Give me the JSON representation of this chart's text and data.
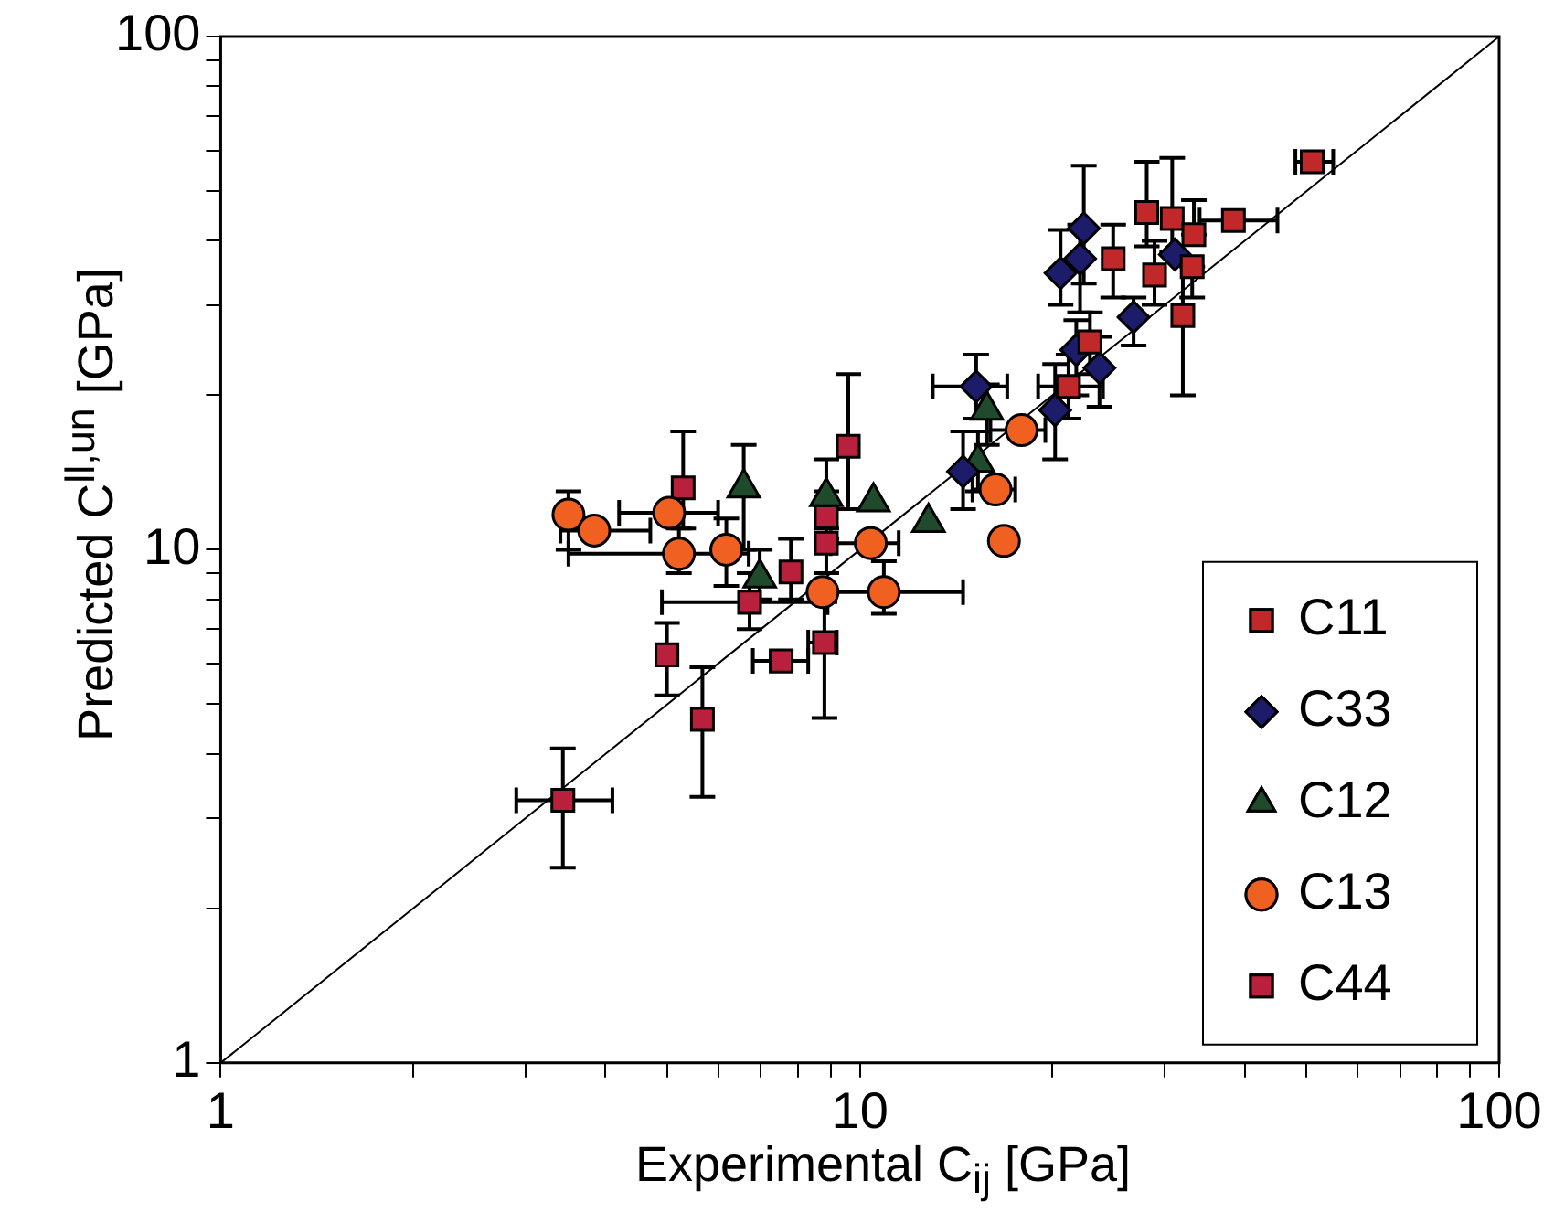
{
  "chart_data": {
    "type": "scatter",
    "xlabel": "Experimental C$_{ij}$ [GPa]",
    "ylabel": "Predicted C$^{ll,un}$ [GPa]",
    "log": "xy",
    "grid": false,
    "legend": "bottom right",
    "xlim": [
      1,
      100
    ],
    "ylim": [
      1,
      100
    ],
    "xticks": [
      1,
      {
        "value": 2,
        "label": null
      },
      {
        "value": 3,
        "label": null
      },
      {
        "value": 4,
        "label": null
      },
      {
        "value": 5,
        "label": null
      },
      {
        "value": 6,
        "label": null
      },
      {
        "value": 7,
        "label": null
      },
      {
        "value": 8,
        "label": null
      },
      {
        "value": 9,
        "label": null
      },
      10,
      {
        "value": 20,
        "label": null
      },
      {
        "value": 30,
        "label": null
      },
      {
        "value": 40,
        "label": null
      },
      {
        "value": 50,
        "label": null
      },
      {
        "value": 60,
        "label": null
      },
      {
        "value": 70,
        "label": null
      },
      {
        "value": 80,
        "label": null
      },
      {
        "value": 90,
        "label": null
      },
      100
    ],
    "yticks": [
      1,
      {
        "value": 2,
        "label": null
      },
      {
        "value": 3,
        "label": null
      },
      {
        "value": 4,
        "label": null
      },
      {
        "value": 5,
        "label": null
      },
      {
        "value": 6,
        "label": null
      },
      {
        "value": 7,
        "label": null
      },
      {
        "value": 8,
        "label": null
      },
      {
        "value": 9,
        "label": null
      },
      10,
      {
        "value": 20,
        "label": null
      },
      {
        "value": 30,
        "label": null
      },
      {
        "value": 40,
        "label": null
      },
      {
        "value": 50,
        "label": null
      },
      {
        "value": 60,
        "label": null
      },
      {
        "value": 70,
        "label": null
      },
      {
        "value": 80,
        "label": null
      },
      {
        "value": 90,
        "label": null
      },
      100
    ],
    "series": [
      {
        "type": "line",
        "color": "#000000",
        "marker": "none",
        "x": [
          1,
          100
        ],
        "values": [
          1,
          100
        ]
      },
      {
        "name": "C11",
        "color": "#c0282a",
        "marker": "square",
        "x": [
          51.0,
          28.1,
          30.8,
          33.3,
          38.4,
          24.9,
          28.9,
          33.1,
          32.0,
          21.2,
          22.9
        ],
        "values": [
          57.0,
          45.4,
          44.2,
          41.1,
          43.8,
          36.9,
          34.3,
          35.6,
          28.6,
          20.8,
          25.4
        ],
        "errors": [
          null,
          [
            39,
            57
          ],
          [
            38,
            58
          ],
          [
            41.1,
            48
          ],
          null,
          [
            31,
            43
          ],
          [
            30,
            40
          ],
          [
            31,
            35.6
          ],
          [
            20,
            36
          ],
          [
            18,
            24
          ],
          [
            22,
            29
          ]
        ],
        "xerrors": [
          [
            48,
            55
          ],
          null,
          null,
          null,
          [
            34,
            45
          ],
          null,
          null,
          null,
          null,
          [
            19,
            24
          ],
          null
        ]
      },
      {
        "name": "C33",
        "color": "#1c1c6a",
        "marker": "diamond",
        "x": [
          22.4,
          22.1,
          20.6,
          26.8,
          31.1,
          21.8,
          23.7,
          20.2,
          15.2,
          14.5
        ],
        "values": [
          42.3,
          36.9,
          34.6,
          28.4,
          37.6,
          24.5,
          22.6,
          18.7,
          20.8,
          14.2
        ],
        "errors": [
          [
            33,
            56
          ],
          [
            29,
            43
          ],
          [
            30,
            42
          ],
          [
            25,
            31
          ],
          null,
          [
            20,
            28
          ],
          [
            19,
            26
          ],
          [
            15,
            23
          ],
          [
            18,
            24
          ],
          [
            12,
            17
          ]
        ],
        "xerrors": [
          null,
          null,
          null,
          null,
          null,
          null,
          null,
          null,
          [
            13,
            17
          ],
          null
        ]
      },
      {
        "name": "C12",
        "color": "#1f4a2c",
        "marker": "triangle",
        "x": [
          6.58,
          8.86,
          10.5,
          12.8,
          15.3,
          6.97,
          15.8
        ],
        "values": [
          13.2,
          12.7,
          12.4,
          11.3,
          14.8,
          8.81,
          18.7
        ],
        "errors": [
          [
            10,
            16
          ],
          [
            11,
            15
          ],
          null,
          null,
          [
            13,
            17
          ],
          [
            8,
            10
          ],
          [
            16,
            21
          ]
        ]
      },
      {
        "name": "C13",
        "color": "#f06020",
        "marker": "circle",
        "x": [
          3.5,
          3.84,
          5.03,
          5.21,
          6.18,
          8.74,
          10.9,
          10.4,
          16.3,
          16.8,
          17.9
        ],
        "values": [
          11.7,
          10.9,
          11.8,
          9.82,
          10.0,
          8.27,
          8.27,
          10.3,
          13.1,
          10.4,
          17.1
        ],
        "errors": [
          [
            10,
            13
          ],
          null,
          null,
          [
            9,
            11
          ],
          [
            8.5,
            11.5
          ],
          null,
          [
            7.5,
            9.5
          ],
          null,
          null,
          null,
          null
        ],
        "xerrors": [
          null,
          [
            3.4,
            4.7
          ],
          [
            4.2,
            6.0
          ],
          [
            3.5,
            6.7
          ],
          null,
          null,
          [
            9,
            14.5
          ],
          [
            9,
            11.5
          ],
          [
            15,
            17.5
          ],
          null,
          [
            16,
            19.5
          ]
        ]
      },
      {
        "name": "C44",
        "color": "#b8203c",
        "marker": "square",
        "x": [
          3.43,
          4.99,
          5.29,
          5.67,
          6.72,
          7.53,
          7.8,
          8.8,
          8.86,
          8.86,
          9.59
        ],
        "values": [
          3.25,
          6.24,
          13.2,
          4.67,
          7.9,
          6.07,
          9.05,
          6.59,
          10.3,
          11.6,
          15.9
        ],
        "errors": [
          [
            2.4,
            4.1
          ],
          [
            5.2,
            7.2
          ],
          [
            11,
            17
          ],
          [
            3.3,
            5.9
          ],
          [
            7,
            9
          ],
          null,
          [
            8,
            10.5
          ],
          [
            4.7,
            7.9
          ],
          [
            9,
            10.3
          ],
          [
            10.5,
            13
          ],
          [
            12,
            22
          ]
        ],
        "xerrors": [
          [
            2.9,
            4.1
          ],
          null,
          null,
          null,
          [
            4.9,
            8.9
          ],
          [
            6.8,
            8.3
          ],
          null,
          [
            8.3,
            9.2
          ],
          null,
          null,
          null
        ]
      }
    ]
  }
}
